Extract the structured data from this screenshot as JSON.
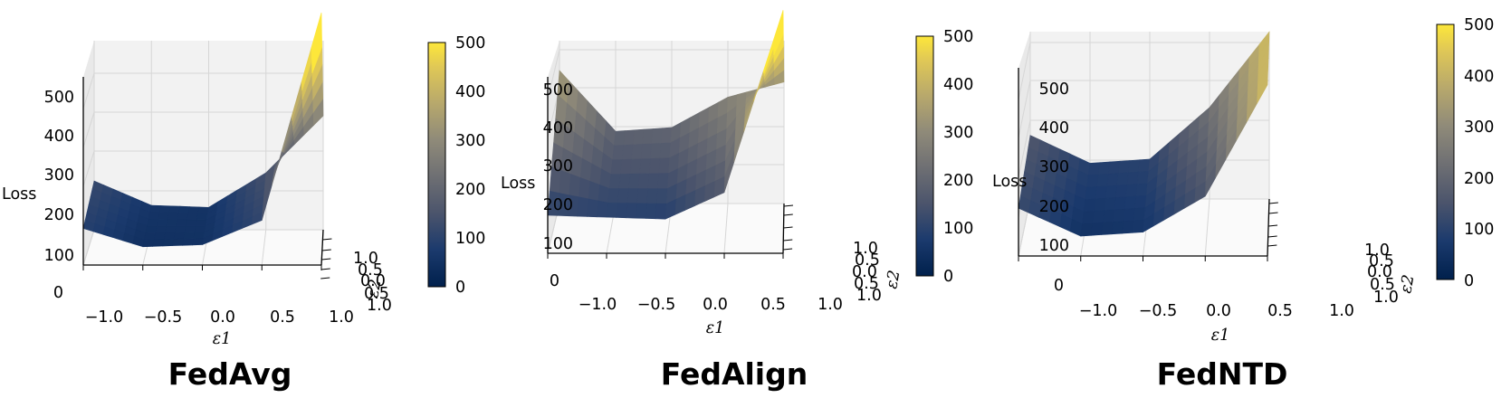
{
  "chart_data": [
    {
      "type": "surface3d",
      "title": "FedAvg",
      "xlabel": "ε1",
      "ylabel": "ε2",
      "zlabel": "Loss",
      "colormap": "cividis",
      "x_ticks": [
        "−1.0",
        "−0.5",
        "0.0",
        "0.5",
        "1.0"
      ],
      "y_ticks": [
        "1.0",
        "0.5",
        "0.0",
        "0.5",
        "1.0"
      ],
      "z_ticks": [
        "0",
        "100",
        "200",
        "300",
        "400",
        "500"
      ],
      "colorbar_ticks": [
        "0",
        "100",
        "200",
        "300",
        "400",
        "500"
      ],
      "xlim": [
        -1.0,
        1.0
      ],
      "ylim": [
        -1.0,
        1.0
      ],
      "zlim": [
        0,
        500
      ],
      "colorbar_range": [
        0,
        500
      ],
      "surface": {
        "grid": [
          -1.0,
          -0.5,
          0.0,
          0.5,
          1.0
        ],
        "loss_front": [
          90,
          45,
          50,
          110,
          620
        ],
        "loss_back": [
          120,
          60,
          55,
          140,
          280
        ]
      }
    },
    {
      "type": "surface3d",
      "title": "FedAlign",
      "xlabel": "ε1",
      "ylabel": "ε2",
      "zlabel": "Loss",
      "colormap": "cividis",
      "x_ticks": [
        "−1.0",
        "−0.5",
        "0.0",
        "0.5",
        "1.0"
      ],
      "y_ticks": [
        "1.0",
        "0.5",
        "0.0",
        "0.5",
        "1.0"
      ],
      "z_ticks": [
        "100",
        "200",
        "300",
        "400",
        "500"
      ],
      "colorbar_ticks": [
        "0",
        "100",
        "200",
        "300",
        "400",
        "500"
      ],
      "xlim": [
        -1.0,
        1.0
      ],
      "ylim": [
        -1.0,
        1.0
      ],
      "zlim": [
        0,
        500
      ],
      "colorbar_range": [
        0,
        500
      ],
      "surface": {
        "grid": [
          -1.0,
          -0.5,
          0.0,
          0.5,
          1.0
        ],
        "loss_front": [
          100,
          95,
          90,
          160,
          640
        ],
        "loss_back": [
          350,
          190,
          200,
          280,
          320
        ]
      }
    },
    {
      "type": "surface3d",
      "title": "FedNTD",
      "xlabel": "ε1",
      "ylabel": "ε2",
      "zlabel": "Loss",
      "colormap": "cividis",
      "x_ticks": [
        "−1.0",
        "−0.5",
        "0.0",
        "0.5",
        "1.0"
      ],
      "y_ticks": [
        "1.0",
        "0.5",
        "0.0",
        "0.5",
        "1.0"
      ],
      "z_ticks": [
        "0",
        "100",
        "200",
        "300",
        "400",
        "500"
      ],
      "colorbar_ticks": [
        "0",
        "100",
        "200",
        "300",
        "400",
        "500"
      ],
      "xlim": [
        -1.0,
        1.0
      ],
      "ylim": [
        -1.0,
        1.0
      ],
      "zlim": [
        0,
        500
      ],
      "colorbar_range": [
        0,
        500
      ],
      "surface": {
        "grid": [
          -1.0,
          -0.5,
          0.0,
          0.5,
          1.0
        ],
        "loss_front": [
          120,
          50,
          60,
          150,
          430
        ],
        "loss_back": [
          160,
          90,
          100,
          230,
          420
        ]
      }
    }
  ]
}
